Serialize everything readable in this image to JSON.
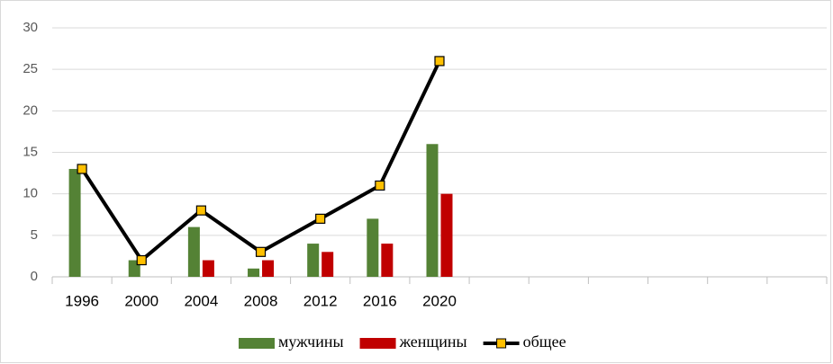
{
  "chart_data": {
    "type": "bar_line",
    "categories": [
      "1996",
      "2000",
      "2004",
      "2008",
      "2012",
      "2016",
      "2020",
      null,
      null,
      null,
      null,
      null,
      null
    ],
    "series": [
      {
        "name": "мужчины",
        "type": "bar",
        "color": "#548235",
        "values": [
          13,
          2,
          6,
          1,
          4,
          7,
          16,
          null,
          null,
          null,
          null,
          null,
          null
        ]
      },
      {
        "name": "женщины",
        "type": "bar",
        "color": "#c00000",
        "values": [
          0,
          0,
          2,
          2,
          3,
          4,
          10,
          null,
          null,
          null,
          null,
          null,
          null
        ]
      },
      {
        "name": "общее",
        "type": "line",
        "color": "#000000",
        "marker_color": "#ffc000",
        "values": [
          13,
          2,
          8,
          3,
          7,
          11,
          26,
          null,
          null,
          null,
          null,
          null,
          null
        ]
      }
    ],
    "ylim": [
      0,
      30
    ],
    "yticks": [
      0,
      5,
      10,
      15,
      20,
      25,
      30
    ],
    "grid": true,
    "legend": "bottom"
  }
}
